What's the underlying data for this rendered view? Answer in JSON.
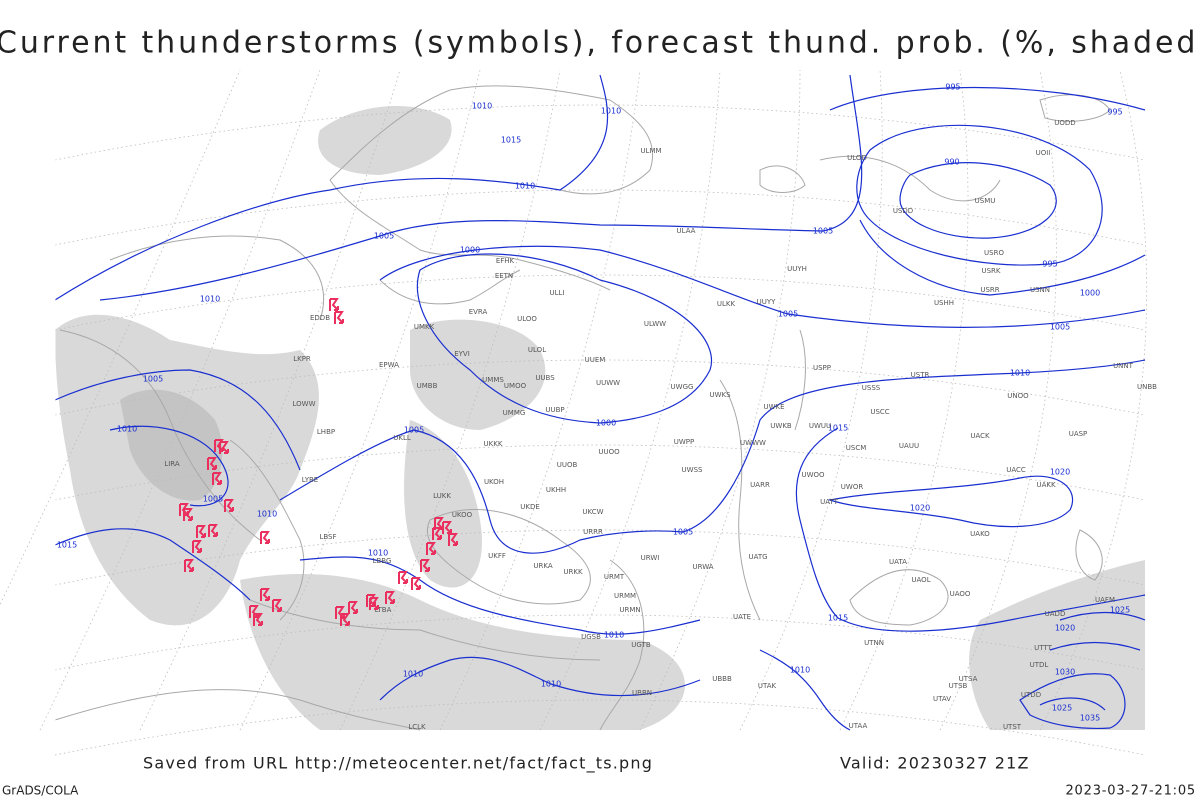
{
  "header": {
    "title": "Current thunderstorms (symbols), forecast thund. prob. (%, shaded)"
  },
  "footer": {
    "source": "Saved from URL http://meteocenter.net/fact/fact_ts.png",
    "valid": "Valid: 20230327 21Z",
    "software": "GrADS/COLA",
    "timestamp": "2023-03-27-21:05"
  },
  "isobar_labels": [
    995,
    995,
    990,
    1010,
    1010,
    1015,
    1010,
    1005,
    1000,
    1005,
    995,
    1000,
    1010,
    1005,
    1005,
    1005,
    1010,
    1010,
    1005,
    1000,
    1015,
    1020,
    1020,
    1005,
    1010,
    1015,
    1005,
    1010,
    1015,
    1010,
    1010,
    1010,
    1010,
    1025,
    1020,
    1030,
    1035,
    1025
  ],
  "stations": [
    "ULAA",
    "ULMM",
    "ULOO",
    "ULOL",
    "UUEM",
    "UUWW",
    "UMMS",
    "UMOO",
    "UUBS",
    "UMMG",
    "UUBP",
    "UKKK",
    "UUOO",
    "UUOB",
    "UKHH",
    "UKDE",
    "UKCW",
    "UKFF",
    "URRR",
    "URWI",
    "URKK",
    "URMT",
    "URWA",
    "URMM",
    "URMN",
    "UGSB",
    "UGTB",
    "UBBN",
    "UBBB",
    "UATE",
    "UATG",
    "UARR",
    "UATT",
    "UWOO",
    "UWOR",
    "USCM",
    "UAUU",
    "UACK",
    "UASP",
    "UACC",
    "UAKK",
    "UAKO",
    "UATA",
    "UAOL",
    "UAOO",
    "UADD",
    "UAFM",
    "UTNN",
    "UTSA",
    "UTSB",
    "UTAV",
    "UTAK",
    "UTAA",
    "USSS",
    "USCC",
    "UNOO",
    "UNNT",
    "UNBB",
    "USTR",
    "USPP",
    "UWKE",
    "UWKB",
    "UWUU",
    "UWWW",
    "UWPP",
    "UWSS",
    "UWKS",
    "UWGG",
    "ULWW",
    "ULKK",
    "UUYY",
    "UUYH",
    "ULOD",
    "USDD",
    "USMU",
    "USRO",
    "USRK",
    "USNN",
    "USRR",
    "USHH",
    "UOII",
    "UODD",
    "UMKK",
    "EVRA",
    "EYVI",
    "EPWA",
    "UMBB",
    "LKPR",
    "LOWW",
    "LHBP",
    "UKLL",
    "LIRA",
    "LYBE",
    "LUKK",
    "LBSF",
    "LBBG",
    "LTBA",
    "LCLK",
    "UTDD",
    "UTDL",
    "UTTT",
    "UTST",
    "EFHK",
    "EETN",
    "ULLI",
    "EDDB",
    "URKA",
    "UKOO",
    "UKOH"
  ]
}
